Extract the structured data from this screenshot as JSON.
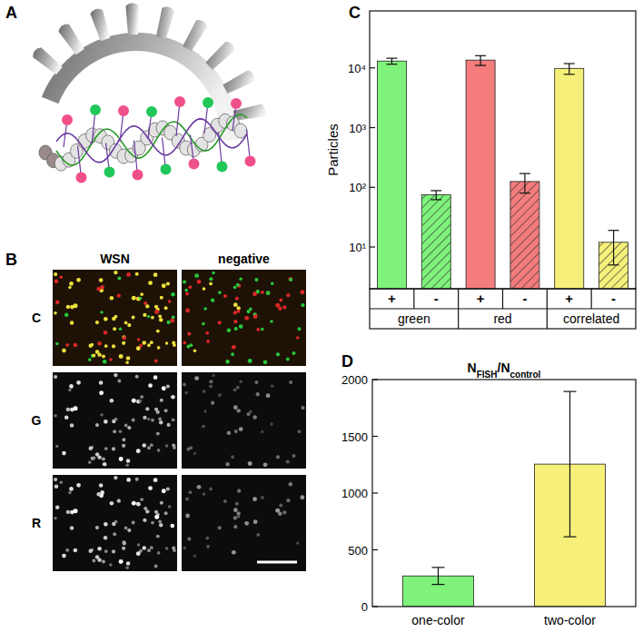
{
  "panels": {
    "labels": [
      "A",
      "B",
      "C",
      "D"
    ],
    "images": {
      "columns": [
        "WSN",
        "negative"
      ],
      "rows": [
        "C",
        "G",
        "R"
      ]
    }
  },
  "chart_data": [
    {
      "type": "bar",
      "log": "y",
      "ylabel": "Particles",
      "categories": [
        "+",
        "-",
        "+",
        "-",
        "+",
        "-"
      ],
      "groups": [
        "green",
        "red",
        "correlated"
      ],
      "values": [
        13000,
        75,
        13500,
        125,
        9800,
        12
      ],
      "errors": [
        1500,
        13,
        2500,
        45,
        2000,
        7
      ],
      "colors": [
        "#7ef27a",
        "#7ef27a",
        "#f47c7c",
        "#f47c7c",
        "#f6f07a",
        "#f6f07a"
      ],
      "ylim": [
        2,
        90000
      ],
      "yticks": [
        {
          "value": 10,
          "label": "10¹"
        },
        {
          "value": 100,
          "label": "10²"
        },
        {
          "value": 1000,
          "label": "10³"
        },
        {
          "value": 10000,
          "label": "10⁴"
        }
      ]
    },
    {
      "type": "bar",
      "title": "NFISH/Ncontrol",
      "categories": [
        "one-color",
        "two-color"
      ],
      "values": [
        270,
        1255
      ],
      "errors": [
        75,
        640
      ],
      "colors": [
        "#7ef27a",
        "#f6f07a"
      ],
      "ylim": [
        0,
        2000
      ],
      "yticks": [
        0,
        500,
        1000,
        1500,
        2000
      ]
    }
  ]
}
